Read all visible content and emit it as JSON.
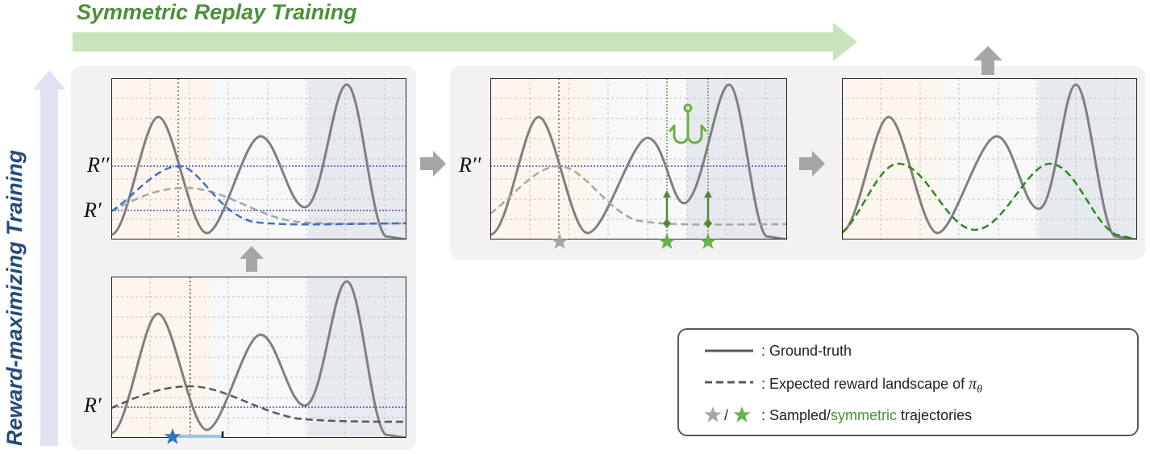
{
  "titles": {
    "top": "Symmetric Replay Training",
    "side": "Reward-maximizing Training"
  },
  "axis_labels": {
    "r_prime": "R′",
    "r_double_prime": "R′′"
  },
  "legend": {
    "ground_truth": ": Ground-truth",
    "expected_prefix": ": Expected reward landscape of ",
    "pi_symbol": "π",
    "theta_symbol": "θ",
    "slash": "/",
    "sampled_prefix": ": Sampled/",
    "symmetric_word": "symmetric",
    "sampled_suffix": " trajectories"
  },
  "colors": {
    "ground_truth": "#7f7f7f",
    "expected_dark": "#595959",
    "expected_grey": "#a6a6a6",
    "expected_blue": "#3f6fcf",
    "expected_green": "#2d8a1f",
    "threshold": "#2f2f9a",
    "title_green": "#4c8f3a",
    "title_blue": "#254b7a",
    "arrow_green": "#c9e4bf",
    "arrow_blue": "#dde3f3",
    "arrow_grey": "#a6a6a6",
    "star_blue": "#2e75c4",
    "star_grey": "#a6a6a6",
    "star_green": "#6ab04c",
    "marker_green": "#4f8a32",
    "hook_green": "#70ad47"
  },
  "icons": [
    "right-arrow-icon",
    "up-arrow-icon",
    "star-icon",
    "fishing-hook-icon"
  ]
}
